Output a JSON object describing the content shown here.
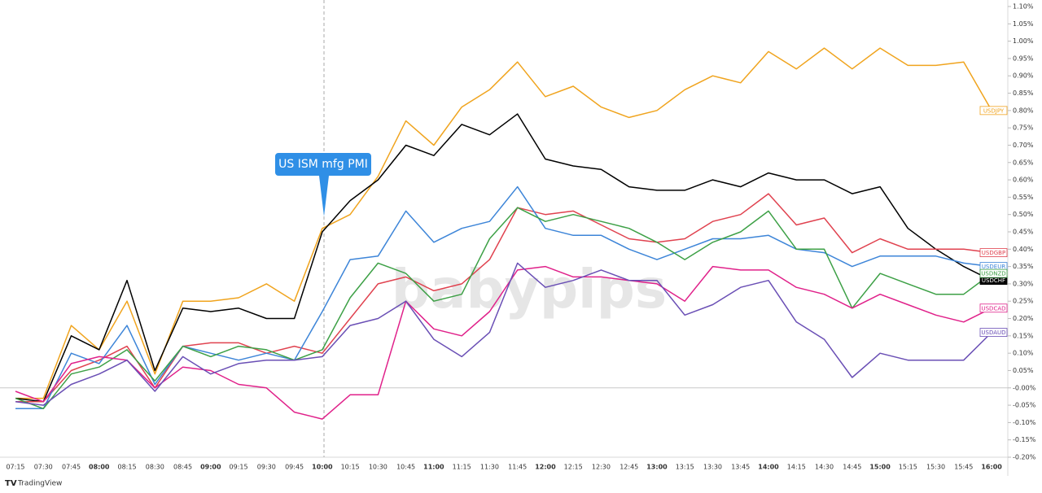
{
  "chart_data": {
    "type": "line",
    "annotation": "US ISM mfg PMI",
    "watermark": "babypips",
    "brand": "TradingView",
    "categories": [
      "07:15",
      "07:30",
      "07:45",
      "08:00",
      "08:15",
      "08:30",
      "08:45",
      "09:00",
      "09:15",
      "09:30",
      "09:45",
      "10:00",
      "10:15",
      "10:30",
      "10:45",
      "11:00",
      "11:15",
      "11:30",
      "11:45",
      "12:00",
      "12:15",
      "12:30",
      "12:45",
      "13:00",
      "13:15",
      "13:30",
      "13:45",
      "14:00",
      "14:15",
      "14:30",
      "14:45",
      "15:00",
      "15:15",
      "15:30",
      "15:45",
      "16:00"
    ],
    "series": [
      {
        "name": "USDJPY",
        "color": "#f0a41e",
        "values": [
          -0.03,
          -0.03,
          0.18,
          0.11,
          0.25,
          0.04,
          0.25,
          0.25,
          0.26,
          0.3,
          0.25,
          0.46,
          0.5,
          0.61,
          0.77,
          0.7,
          0.81,
          0.86,
          0.94,
          0.84,
          0.87,
          0.81,
          0.78,
          0.8,
          0.86,
          0.9,
          0.88,
          0.97,
          0.92,
          0.98,
          0.92,
          0.98,
          0.93,
          0.93,
          0.94,
          0.8
        ]
      },
      {
        "name": "USDCHF",
        "color": "#000000",
        "values": [
          -0.03,
          -0.04,
          0.15,
          0.11,
          0.31,
          0.05,
          0.23,
          0.22,
          0.23,
          0.2,
          0.2,
          0.45,
          0.54,
          0.6,
          0.7,
          0.67,
          0.76,
          0.73,
          0.79,
          0.66,
          0.64,
          0.63,
          0.58,
          0.57,
          0.57,
          0.6,
          0.58,
          0.62,
          0.6,
          0.6,
          0.56,
          0.58,
          0.46,
          0.4,
          0.35,
          0.31
        ]
      },
      {
        "name": "USDGBP",
        "color": "#e0424f",
        "values": [
          -0.04,
          -0.04,
          0.05,
          0.08,
          0.12,
          0.0,
          0.12,
          0.13,
          0.13,
          0.1,
          0.12,
          0.1,
          0.2,
          0.3,
          0.32,
          0.28,
          0.3,
          0.37,
          0.52,
          0.5,
          0.51,
          0.47,
          0.43,
          0.42,
          0.43,
          0.48,
          0.5,
          0.56,
          0.47,
          0.49,
          0.39,
          0.43,
          0.4,
          0.4,
          0.4,
          0.39
        ]
      },
      {
        "name": "USDEUR",
        "color": "#3d85d8",
        "values": [
          -0.06,
          -0.06,
          0.1,
          0.07,
          0.18,
          0.01,
          0.12,
          0.1,
          0.08,
          0.1,
          0.08,
          0.22,
          0.37,
          0.38,
          0.51,
          0.42,
          0.46,
          0.48,
          0.58,
          0.46,
          0.44,
          0.44,
          0.4,
          0.37,
          0.4,
          0.43,
          0.43,
          0.44,
          0.4,
          0.39,
          0.35,
          0.38,
          0.38,
          0.38,
          0.36,
          0.35
        ]
      },
      {
        "name": "USDNZD",
        "color": "#3da046",
        "values": [
          -0.03,
          -0.06,
          0.04,
          0.06,
          0.11,
          0.02,
          0.12,
          0.09,
          0.12,
          0.11,
          0.08,
          0.11,
          0.26,
          0.36,
          0.33,
          0.25,
          0.27,
          0.43,
          0.52,
          0.48,
          0.5,
          0.48,
          0.46,
          0.42,
          0.37,
          0.42,
          0.45,
          0.51,
          0.4,
          0.4,
          0.23,
          0.33,
          0.3,
          0.27,
          0.27,
          0.33
        ]
      },
      {
        "name": "USDCAD",
        "color": "#e0218a",
        "values": [
          -0.01,
          -0.04,
          0.07,
          0.09,
          0.08,
          0.0,
          0.06,
          0.05,
          0.01,
          0.0,
          -0.07,
          -0.09,
          -0.02,
          -0.02,
          0.25,
          0.17,
          0.15,
          0.22,
          0.34,
          0.35,
          0.32,
          0.32,
          0.31,
          0.3,
          0.25,
          0.35,
          0.34,
          0.34,
          0.29,
          0.27,
          0.23,
          0.27,
          0.24,
          0.21,
          0.19,
          0.23
        ]
      },
      {
        "name": "USDAUD",
        "color": "#6a4fb5",
        "values": [
          -0.04,
          -0.05,
          0.01,
          0.04,
          0.08,
          -0.01,
          0.09,
          0.04,
          0.07,
          0.08,
          0.08,
          0.09,
          0.18,
          0.2,
          0.25,
          0.14,
          0.09,
          0.16,
          0.36,
          0.29,
          0.31,
          0.34,
          0.31,
          0.31,
          0.21,
          0.24,
          0.29,
          0.31,
          0.19,
          0.14,
          0.03,
          0.1,
          0.08,
          0.08,
          0.08,
          0.16
        ]
      }
    ],
    "ylim": [
      -0.2,
      1.1
    ],
    "yticks": [
      {
        "value": 1.1,
        "label": "1.10%"
      },
      {
        "value": 1.05,
        "label": "1.05%"
      },
      {
        "value": 1.0,
        "label": "1.00%"
      },
      {
        "value": 0.95,
        "label": "0.95%"
      },
      {
        "value": 0.9,
        "label": "0.90%"
      },
      {
        "value": 0.85,
        "label": "0.85%"
      },
      {
        "value": 0.8,
        "label": "0.80%"
      },
      {
        "value": 0.75,
        "label": "0.75%"
      },
      {
        "value": 0.7,
        "label": "0.70%"
      },
      {
        "value": 0.65,
        "label": "0.65%"
      },
      {
        "value": 0.6,
        "label": "0.60%"
      },
      {
        "value": 0.55,
        "label": "0.55%"
      },
      {
        "value": 0.5,
        "label": "0.50%"
      },
      {
        "value": 0.45,
        "label": "0.45%"
      },
      {
        "value": 0.4,
        "label": "0.40%"
      },
      {
        "value": 0.35,
        "label": "0.35%"
      },
      {
        "value": 0.3,
        "label": "0.30%"
      },
      {
        "value": 0.25,
        "label": "0.25%"
      },
      {
        "value": 0.2,
        "label": "0.20%"
      },
      {
        "value": 0.15,
        "label": "0.15%"
      },
      {
        "value": 0.1,
        "label": "0.10%"
      },
      {
        "value": 0.05,
        "label": "0.05%"
      },
      {
        "value": 0,
        "label": "-0.00%"
      },
      {
        "value": -0.05,
        "label": "-0.05%"
      },
      {
        "value": -0.1,
        "label": "-0.10%"
      },
      {
        "value": -0.15,
        "label": "-0.15%"
      },
      {
        "value": -0.2,
        "label": "-0.20%"
      }
    ]
  }
}
